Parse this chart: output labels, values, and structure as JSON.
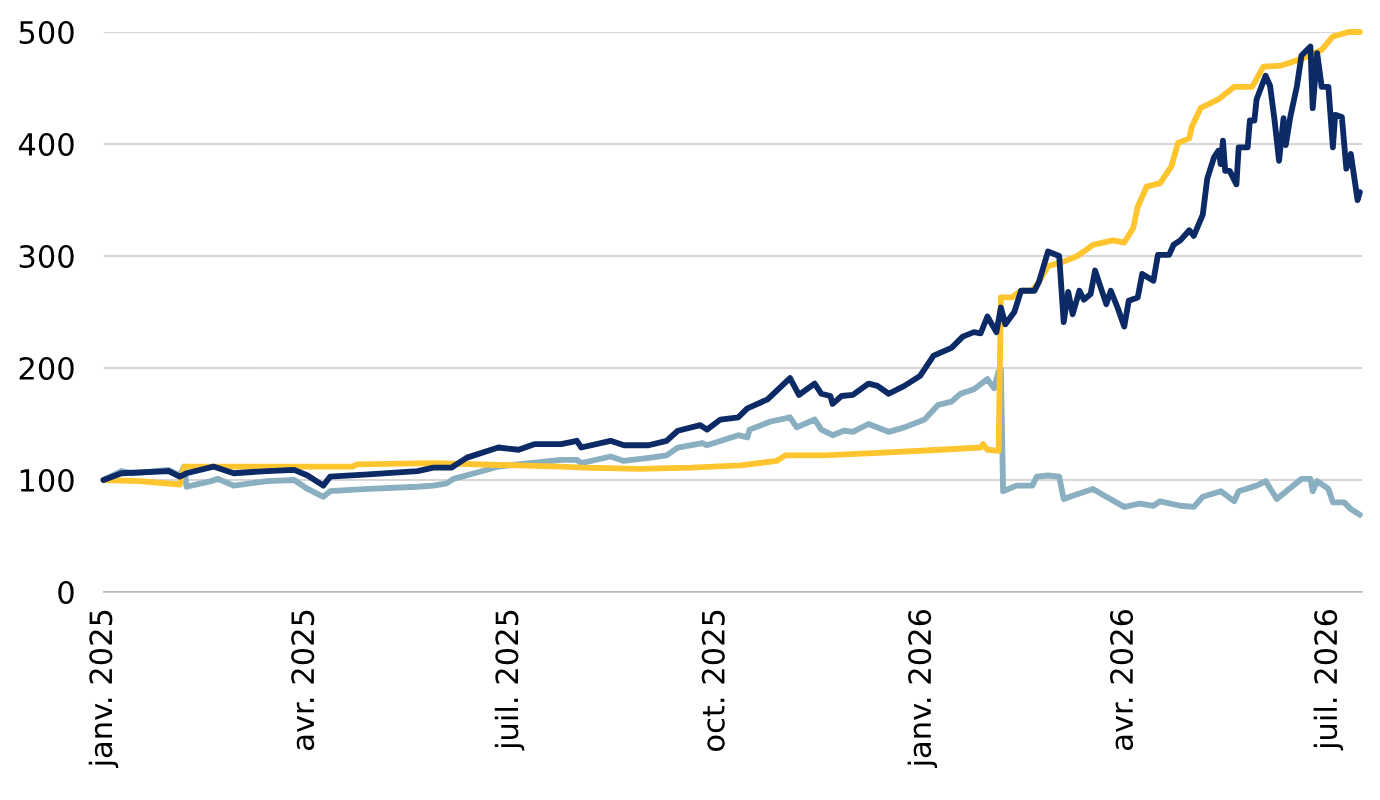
{
  "chart_data": {
    "type": "line",
    "xlim": [
      "2025-01-01",
      "2026-07-16"
    ],
    "ylim": [
      0,
      500
    ],
    "yticks": [
      0,
      100,
      200,
      300,
      400,
      500
    ],
    "xticks": [
      {
        "value": "2025-01-01",
        "label": "janv. 2025"
      },
      {
        "value": "2025-04-01",
        "label": "avr. 2025"
      },
      {
        "value": "2025-07-01",
        "label": "juil. 2025"
      },
      {
        "value": "2025-10-01",
        "label": "oct. 2025"
      },
      {
        "value": "2026-01-01",
        "label": "janv. 2026"
      },
      {
        "value": "2026-04-01",
        "label": "avr. 2026"
      },
      {
        "value": "2026-07-01",
        "label": "juil. 2026"
      }
    ],
    "grid": "y",
    "marker": "none",
    "line_style": "solid",
    "series": [
      {
        "color": "#8aafc0",
        "x": [
          "2025-01-01",
          "2025-01-09",
          "2025-01-14",
          "2025-01-30",
          "2025-02-04",
          "2025-02-06",
          "2025-02-07",
          "2025-02-18",
          "2025-02-21",
          "2025-02-28",
          "2025-03-15",
          "2025-03-27",
          "2025-04-02",
          "2025-04-09",
          "2025-04-12",
          "2025-04-29",
          "2025-05-21",
          "2025-05-28",
          "2025-06-03",
          "2025-06-06",
          "2025-06-19",
          "2025-06-26",
          "2025-07-10",
          "2025-07-24",
          "2025-07-31",
          "2025-08-02",
          "2025-08-15",
          "2025-08-21",
          "2025-09-02",
          "2025-09-09",
          "2025-09-14",
          "2025-09-25",
          "2025-09-27",
          "2025-10-11",
          "2025-10-15",
          "2025-10-16",
          "2025-10-25",
          "2025-11-03",
          "2025-11-06",
          "2025-11-14",
          "2025-11-17",
          "2025-11-22",
          "2025-11-27",
          "2025-12-01",
          "2025-12-08",
          "2025-12-17",
          "2025-12-24",
          "2026-01-02",
          "2026-01-08",
          "2026-01-14",
          "2026-01-18",
          "2026-01-24",
          "2026-01-30",
          "2026-02-02",
          "2026-02-04",
          "2026-02-05",
          "2026-02-06",
          "2026-02-12",
          "2026-02-19",
          "2026-02-21",
          "2026-02-26",
          "2026-03-03",
          "2026-03-05",
          "2026-03-09",
          "2026-03-18",
          "2026-03-24",
          "2026-04-01",
          "2026-04-08",
          "2026-04-14",
          "2026-04-17",
          "2026-04-26",
          "2026-05-02",
          "2026-05-06",
          "2026-05-14",
          "2026-05-20",
          "2026-05-22",
          "2026-05-30",
          "2026-06-03",
          "2026-06-08",
          "2026-06-11",
          "2026-06-19",
          "2026-06-23",
          "2026-06-24",
          "2026-06-26",
          "2026-07-01",
          "2026-07-03",
          "2026-07-08",
          "2026-07-11",
          "2026-07-15"
        ],
        "values": [
          100,
          108,
          106,
          109,
          104,
          112,
          94,
          99,
          101,
          95,
          99,
          100,
          92,
          85,
          90,
          92,
          94,
          95,
          97,
          101,
          108,
          112,
          115,
          118,
          118,
          115,
          121,
          117,
          120,
          122,
          129,
          133,
          131,
          140,
          138,
          145,
          152,
          156,
          147,
          154,
          145,
          140,
          144,
          143,
          150,
          143,
          147,
          154,
          167,
          170,
          177,
          181,
          190,
          182,
          197,
          199,
          90,
          95,
          95,
          103,
          104,
          103,
          83,
          86,
          92,
          85,
          76,
          79,
          77,
          81,
          77,
          76,
          85,
          90,
          81,
          90,
          95,
          99,
          83,
          88,
          101,
          101,
          90,
          99,
          92,
          80,
          80,
          74,
          69
        ]
      },
      {
        "color": "#ffc52f",
        "x": [
          "2025-01-01",
          "2025-01-17",
          "2025-02-04",
          "2025-02-06",
          "2025-03-15",
          "2025-04-22",
          "2025-04-24",
          "2025-05-28",
          "2025-07-24",
          "2025-08-03",
          "2025-08-28",
          "2025-09-20",
          "2025-10-12",
          "2025-10-28",
          "2025-11-01",
          "2025-11-18",
          "2025-12-10",
          "2026-01-09",
          "2026-01-27",
          "2026-01-28",
          "2026-01-30",
          "2026-02-04",
          "2026-02-05",
          "2026-02-10",
          "2026-02-14",
          "2026-02-19",
          "2026-02-22",
          "2026-02-26",
          "2026-03-05",
          "2026-03-11",
          "2026-03-14",
          "2026-03-18",
          "2026-03-27",
          "2026-04-01",
          "2026-04-05",
          "2026-04-07",
          "2026-04-11",
          "2026-04-17",
          "2026-04-22",
          "2026-04-25",
          "2026-04-30",
          "2026-05-01",
          "2026-05-05",
          "2026-05-13",
          "2026-05-20",
          "2026-05-28",
          "2026-06-02",
          "2026-06-10",
          "2026-06-19",
          "2026-06-28",
          "2026-07-03",
          "2026-07-10",
          "2026-07-15"
        ],
        "values": [
          100,
          99,
          96,
          112,
          112,
          112,
          114,
          115,
          112,
          111,
          110,
          111,
          113,
          117,
          122,
          122,
          124,
          127,
          129,
          132,
          127,
          126,
          263,
          263,
          269,
          269,
          277,
          291,
          295,
          300,
          304,
          310,
          314,
          312,
          325,
          344,
          362,
          365,
          380,
          401,
          405,
          415,
          432,
          440,
          451,
          451,
          469,
          470,
          476,
          484,
          496,
          500,
          500
        ]
      },
      {
        "color": "#0b2a66",
        "x": [
          "2025-01-01",
          "2025-01-09",
          "2025-01-30",
          "2025-02-04",
          "2025-02-07",
          "2025-02-19",
          "2025-02-28",
          "2025-03-15",
          "2025-03-27",
          "2025-04-02",
          "2025-04-09",
          "2025-04-12",
          "2025-04-29",
          "2025-05-21",
          "2025-05-28",
          "2025-06-05",
          "2025-06-12",
          "2025-06-26",
          "2025-07-05",
          "2025-07-12",
          "2025-07-24",
          "2025-07-31",
          "2025-08-02",
          "2025-08-15",
          "2025-08-21",
          "2025-09-01",
          "2025-09-09",
          "2025-09-14",
          "2025-09-24",
          "2025-09-27",
          "2025-10-03",
          "2025-10-11",
          "2025-10-15",
          "2025-10-24",
          "2025-11-03",
          "2025-11-07",
          "2025-11-14",
          "2025-11-17",
          "2025-11-21",
          "2025-11-22",
          "2025-11-26",
          "2025-12-01",
          "2025-12-08",
          "2025-12-12",
          "2025-12-17",
          "2025-12-24",
          "2025-12-31",
          "2026-01-06",
          "2026-01-14",
          "2026-01-19",
          "2026-01-24",
          "2026-01-27",
          "2026-01-30",
          "2026-02-03",
          "2026-02-05",
          "2026-02-07",
          "2026-02-11",
          "2026-02-14",
          "2026-02-20",
          "2026-02-22",
          "2026-02-26",
          "2026-03-03",
          "2026-03-05",
          "2026-03-07",
          "2026-03-09",
          "2026-03-12",
          "2026-03-14",
          "2026-03-17",
          "2026-03-19",
          "2026-03-24",
          "2026-03-26",
          "2026-03-29",
          "2026-04-01",
          "2026-04-03",
          "2026-04-07",
          "2026-04-09",
          "2026-04-14",
          "2026-04-16",
          "2026-04-21",
          "2026-04-23",
          "2026-04-26",
          "2026-04-30",
          "2026-05-02",
          "2026-05-06",
          "2026-05-08",
          "2026-05-11",
          "2026-05-13",
          "2026-05-14",
          "2026-05-15",
          "2026-05-16",
          "2026-05-18",
          "2026-05-21",
          "2026-05-22",
          "2026-05-26",
          "2026-05-27",
          "2026-05-29",
          "2026-05-30",
          "2026-06-03",
          "2026-06-05",
          "2026-06-07",
          "2026-06-09",
          "2026-06-11",
          "2026-06-12",
          "2026-06-14",
          "2026-06-17",
          "2026-06-19",
          "2026-06-23",
          "2026-06-24",
          "2026-06-26",
          "2026-06-28",
          "2026-07-01",
          "2026-07-03",
          "2026-07-04",
          "2026-07-07",
          "2026-07-09",
          "2026-07-11",
          "2026-07-14",
          "2026-07-15"
        ],
        "values": [
          100,
          106,
          108,
          103,
          106,
          112,
          106,
          108,
          109,
          104,
          95,
          103,
          105,
          108,
          111,
          111,
          120,
          129,
          127,
          132,
          132,
          135,
          129,
          135,
          131,
          131,
          135,
          144,
          149,
          145,
          154,
          156,
          164,
          172,
          191,
          176,
          186,
          177,
          175,
          168,
          175,
          176,
          186,
          184,
          177,
          184,
          193,
          211,
          218,
          228,
          232,
          231,
          246,
          232,
          254,
          239,
          250,
          269,
          269,
          277,
          304,
          300,
          241,
          268,
          248,
          269,
          261,
          266,
          287,
          257,
          269,
          254,
          237,
          260,
          263,
          284,
          278,
          301,
          301,
          310,
          314,
          323,
          318,
          337,
          369,
          388,
          394,
          382,
          403,
          376,
          376,
          364,
          397,
          397,
          421,
          421,
          440,
          461,
          452,
          421,
          385,
          423,
          399,
          424,
          452,
          479,
          487,
          432,
          481,
          451,
          451,
          397,
          426,
          424,
          378,
          391,
          350,
          357
        ]
      }
    ]
  }
}
